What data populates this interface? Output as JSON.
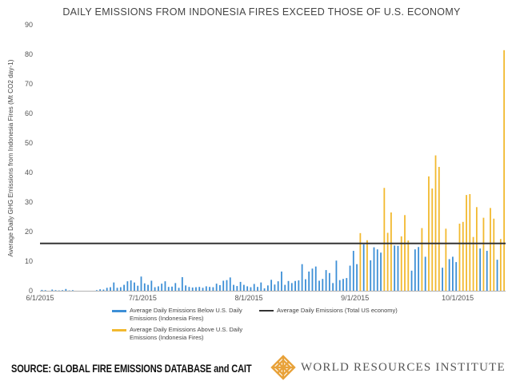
{
  "chart_data": {
    "type": "bar",
    "title": "DAILY EMISSIONS FROM INDONESIA FIRES EXCEED THOSE OF U.S. ECONOMY",
    "ylabel": "Average Daily GHG Emissions from Indonesia Fires (Mt CO2 day-1)",
    "xlabel": "",
    "ylim": [
      0,
      90
    ],
    "yticks": [
      0,
      10,
      20,
      30,
      40,
      50,
      60,
      70,
      80,
      90
    ],
    "xticks": [
      {
        "label": "6/1/2015",
        "day": 0
      },
      {
        "label": "7/1/2015",
        "day": 30
      },
      {
        "label": "8/1/2015",
        "day": 61
      },
      {
        "label": "9/1/2015",
        "day": 92
      },
      {
        "label": "10/1/2015",
        "day": 122
      }
    ],
    "x_start": "6/1/2015",
    "threshold": 16,
    "colors": {
      "below": "#3d8fd6",
      "above": "#f2b92f",
      "threshold": "#333333"
    },
    "values": [
      0.3,
      0.2,
      0,
      0.4,
      0.2,
      0.1,
      0.2,
      0.6,
      0.1,
      0.2,
      0,
      0,
      0,
      0,
      0,
      0,
      0.2,
      0.5,
      0.4,
      1.0,
      1.2,
      2.8,
      1.0,
      1.2,
      2.0,
      3.2,
      3.5,
      2.8,
      1.7,
      4.8,
      2.5,
      2.0,
      3.4,
      1.2,
      1.5,
      2.4,
      3.2,
      1.3,
      1.4,
      2.6,
      1.0,
      4.6,
      1.8,
      1.3,
      1.1,
      1.2,
      1.3,
      1.0,
      1.5,
      1.3,
      1.2,
      2.4,
      1.9,
      3.4,
      3.6,
      4.5,
      2.0,
      1.6,
      3.0,
      2.0,
      1.5,
      1.2,
      2.3,
      1.3,
      2.8,
      0.8,
      1.8,
      3.7,
      2.1,
      3.2,
      6.5,
      2.0,
      3.3,
      2.6,
      3.3,
      3.5,
      9.0,
      3.9,
      6.5,
      7.5,
      8.2,
      3.4,
      4.0,
      7.0,
      6.0,
      2.6,
      10.2,
      3.6,
      4.0,
      4.3,
      8.5,
      13.5,
      9.0,
      19.5,
      15.7,
      17.1,
      10.3,
      14.7,
      14.0,
      12.9,
      34.8,
      19.6,
      26.5,
      15.3,
      15.2,
      18.4,
      25.6,
      17.0,
      6.8,
      14.0,
      14.8,
      21.2,
      11.5,
      38.7,
      34.6,
      45.8,
      41.9,
      7.8,
      21.0,
      10.7,
      11.5,
      9.7,
      22.7,
      23.3,
      32.4,
      32.7,
      18.2,
      28.3,
      14.3,
      24.7,
      13.5,
      28.0,
      24.4,
      10.5,
      17.5,
      81.4
    ],
    "legend": [
      {
        "key": "below",
        "label": "Average Daily Emissions Below U.S. Daily Emissions (Indonesia Fires)"
      },
      {
        "key": "above",
        "label": "Average Daily Emissions Above U.S. Daily Emissions (Indonesia Fires)"
      },
      {
        "key": "threshold",
        "label": "Average Daily Emissions (Total US economy)"
      }
    ]
  },
  "footer": {
    "source": "SOURCE: GLOBAL FIRE EMISSIONS DATABASE and CAIT",
    "org_name": "WORLD RESOURCES INSTITUTE"
  }
}
